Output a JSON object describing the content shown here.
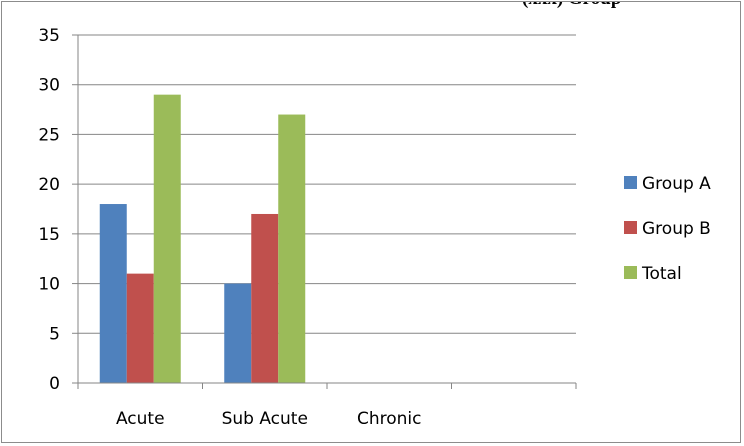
{
  "clipped_heading": "(xxx) Group",
  "chart_data": {
    "type": "bar",
    "categories": [
      "Acute",
      "Sub Acute",
      "Chronic",
      ""
    ],
    "series": [
      {
        "name": "Group A",
        "values": [
          18,
          10,
          0,
          0
        ],
        "color": "#4f81bd"
      },
      {
        "name": "Group B",
        "values": [
          11,
          17,
          0,
          0
        ],
        "color": "#c0504d"
      },
      {
        "name": "Total",
        "values": [
          29,
          27,
          0,
          0
        ],
        "color": "#9bbb59"
      }
    ],
    "title": "",
    "xlabel": "",
    "ylabel": "",
    "ylim": [
      0,
      35
    ],
    "yticks": [
      0,
      5,
      10,
      15,
      20,
      25,
      30,
      35
    ],
    "grid": true,
    "legend_position": "right"
  }
}
